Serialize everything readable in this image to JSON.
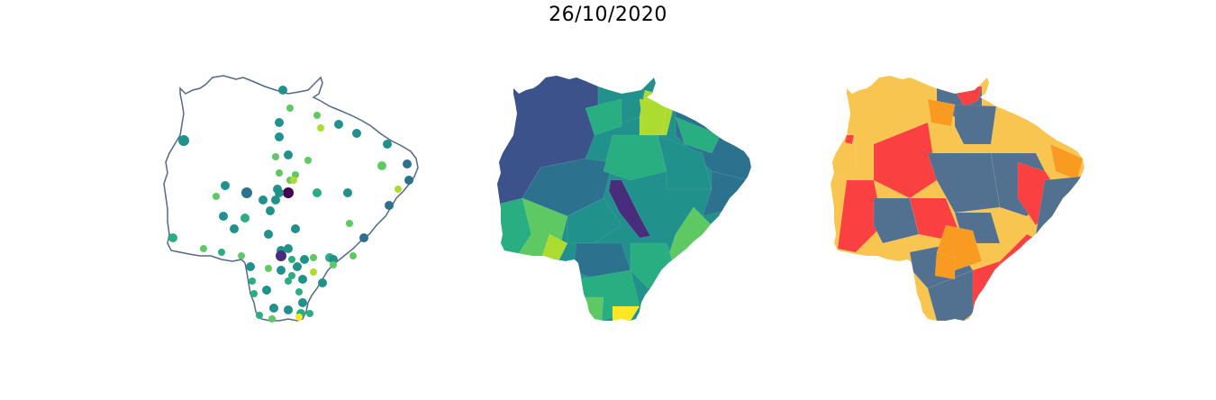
{
  "title": "26/10/2020",
  "colors": {
    "outline": "#52688a",
    "viridis": [
      "#440154",
      "#472d7b",
      "#3b528b",
      "#2c728e",
      "#21918c",
      "#28ae80",
      "#5ec962",
      "#addc30",
      "#fde725"
    ],
    "risk": {
      "gray_blue": "#52708f",
      "red": "#fa4040",
      "orange": "#f99b20",
      "yellow": "#f8c550"
    }
  },
  "maps": [
    {
      "name": "points-map",
      "kind": "scatter",
      "state_outline": true
    },
    {
      "name": "choropleth-viridis",
      "kind": "choropleth",
      "palette": "viridis"
    },
    {
      "name": "choropleth-risk",
      "kind": "choropleth",
      "palette": "risk"
    }
  ]
}
